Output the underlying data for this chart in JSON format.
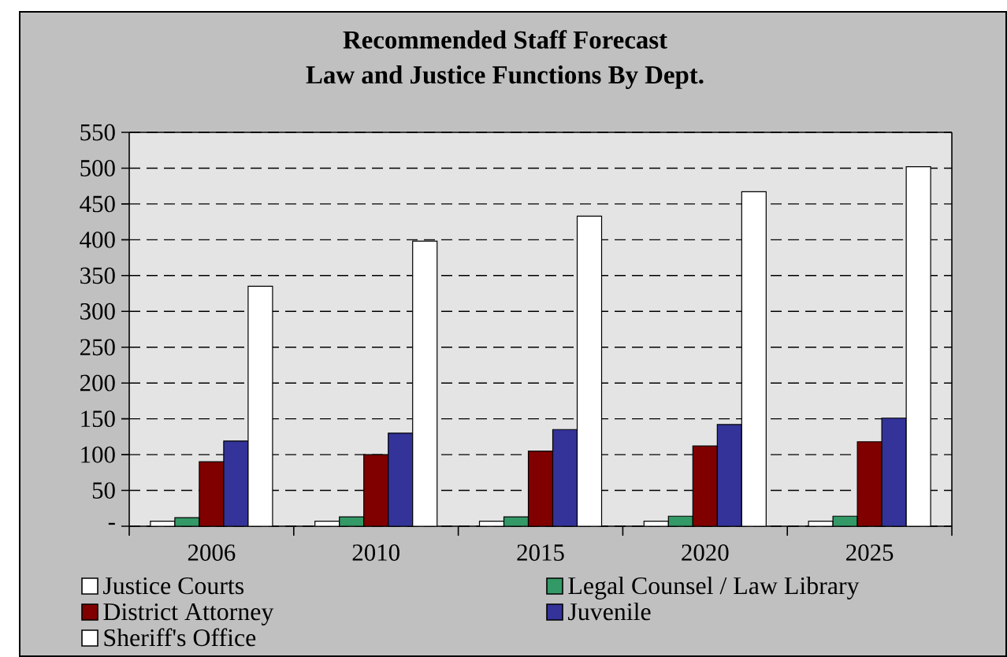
{
  "chart_data": {
    "type": "bar",
    "title": "Recommended Staff Forecast",
    "subtitle": "Law and Justice Functions By Dept.",
    "categories": [
      "2006",
      "2010",
      "2015",
      "2020",
      "2025"
    ],
    "series": [
      {
        "name": "Justice Courts",
        "color": "#ffffff",
        "values": [
          7,
          7,
          7,
          7,
          7
        ]
      },
      {
        "name": "Legal Counsel / Law Library",
        "color": "#339966",
        "values": [
          12,
          13,
          13,
          14,
          14
        ]
      },
      {
        "name": "District Attorney",
        "color": "#800000",
        "values": [
          90,
          100,
          105,
          112,
          118
        ]
      },
      {
        "name": "Juvenile",
        "color": "#333399",
        "values": [
          119,
          130,
          135,
          142,
          151
        ]
      },
      {
        "name": "Sheriff's Office",
        "color": "#ffffff",
        "values": [
          335,
          398,
          433,
          467,
          502
        ]
      }
    ],
    "ylim": [
      0,
      550
    ],
    "yticks": [
      {
        "value": 0,
        "label": "-"
      },
      50,
      100,
      150,
      200,
      250,
      300,
      350,
      400,
      450,
      500,
      550
    ],
    "grid": "y",
    "legend": "bottom"
  }
}
